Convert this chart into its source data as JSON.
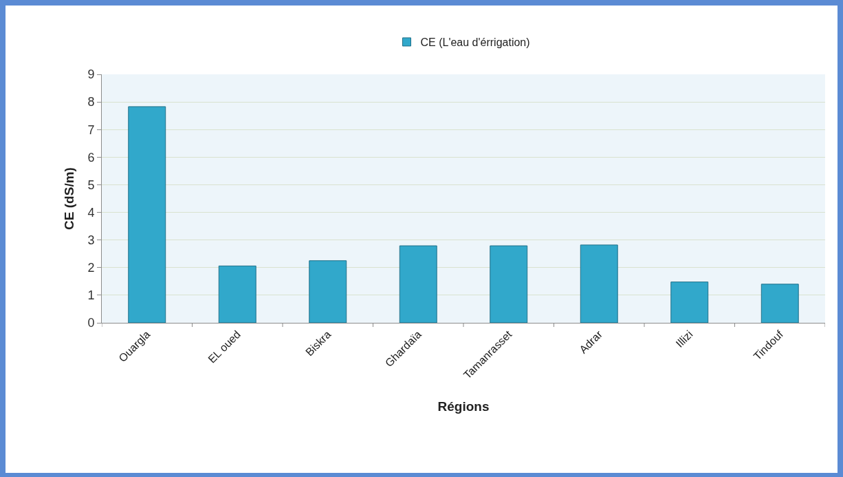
{
  "chart_data": {
    "type": "bar",
    "categories": [
      "Ouargla",
      "EL oued",
      "Biskra",
      "Ghardaïa",
      "Tamanrasset",
      "Adrar",
      "Illizi",
      "Tindouf"
    ],
    "series": [
      {
        "name": "CE (L'eau d'érrigation)",
        "color": "#31a8cb",
        "values": [
          7.83,
          2.06,
          2.25,
          2.79,
          2.79,
          2.82,
          1.48,
          1.4
        ]
      }
    ],
    "xlabel": "Régions",
    "ylabel": "CE (dS/m)",
    "ylim": [
      0,
      9
    ],
    "yticks": [
      0,
      1,
      2,
      3,
      4,
      5,
      6,
      7,
      8,
      9
    ],
    "grid": "y",
    "legend": "top"
  }
}
